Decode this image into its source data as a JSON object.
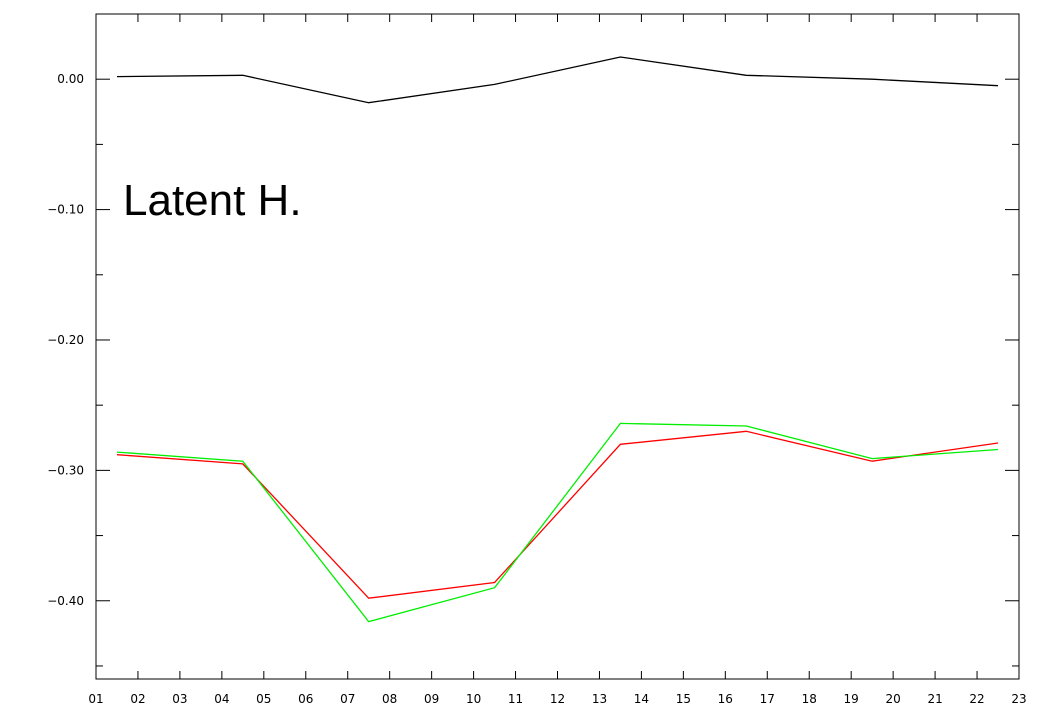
{
  "chart_data": {
    "type": "line",
    "title": "",
    "xlabel": "",
    "ylabel": "",
    "annotation": "Latent H.",
    "x_ticks": [
      "01",
      "02",
      "03",
      "04",
      "05",
      "06",
      "07",
      "08",
      "09",
      "10",
      "11",
      "12",
      "13",
      "14",
      "15",
      "16",
      "17",
      "18",
      "19",
      "20",
      "21",
      "22",
      "23"
    ],
    "y_ticks": [
      "0.00",
      "-0.10",
      "-0.20",
      "-0.30",
      "-0.40"
    ],
    "xlim": [
      1,
      23
    ],
    "ylim": [
      -0.46,
      0.05
    ],
    "grid": false,
    "legend": "none",
    "x": [
      1.5,
      4.5,
      7.5,
      10.5,
      13.5,
      16.5,
      19.5,
      22.5
    ],
    "series": [
      {
        "color": "#000000",
        "values": [
          0.002,
          0.003,
          -0.018,
          -0.004,
          0.017,
          0.003,
          0.0,
          -0.005
        ]
      },
      {
        "color": "#ff0000",
        "values": [
          -0.288,
          -0.295,
          -0.398,
          -0.386,
          -0.28,
          -0.27,
          -0.293,
          -0.279
        ]
      },
      {
        "color": "#00ee00",
        "values": [
          -0.286,
          -0.293,
          -0.416,
          -0.39,
          -0.264,
          -0.266,
          -0.291,
          -0.284
        ]
      }
    ]
  }
}
